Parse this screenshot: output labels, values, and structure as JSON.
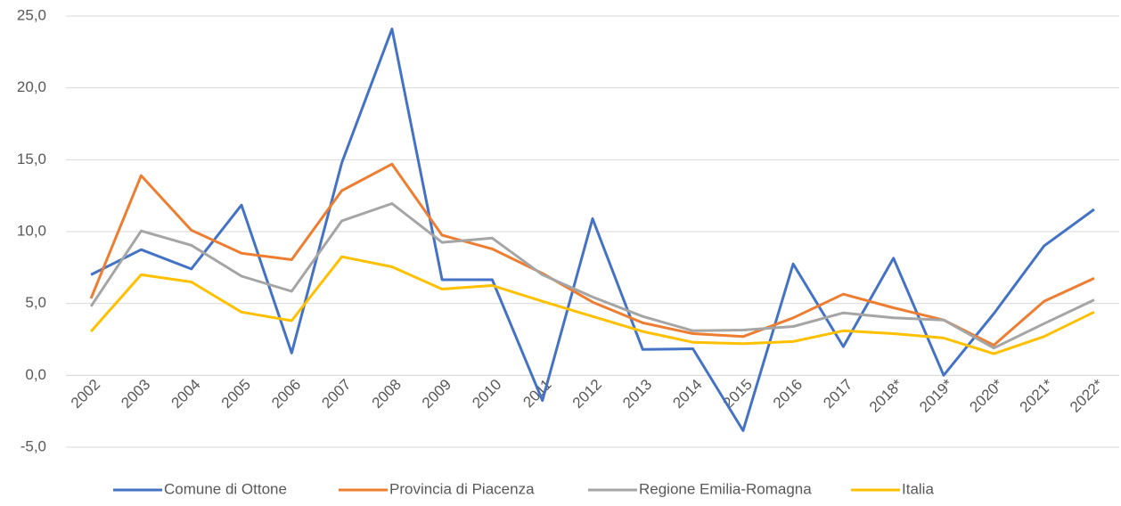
{
  "chart_data": {
    "type": "line",
    "categories": [
      "2002",
      "2003",
      "2004",
      "2005",
      "2006",
      "2007",
      "2008",
      "2009",
      "2010",
      "2011",
      "2012",
      "2013",
      "2014",
      "2015",
      "2016",
      "2017",
      "2018*",
      "2019*",
      "2020*",
      "2021*",
      "2022*"
    ],
    "series": [
      {
        "name": "Comune di Ottone",
        "color": "#4472c4",
        "values": [
          7.0,
          8.75,
          7.4,
          11.85,
          1.55,
          14.8,
          24.1,
          6.65,
          6.65,
          -1.75,
          10.9,
          1.8,
          1.85,
          -3.85,
          7.75,
          2.0,
          8.15,
          0,
          4.3,
          9.0,
          11.55
        ]
      },
      {
        "name": "Provincia di Piacenza",
        "color": "#ed7d31",
        "values": [
          5.35,
          13.9,
          10.1,
          8.5,
          8.05,
          12.85,
          14.7,
          9.75,
          8.8,
          7.1,
          5.1,
          3.65,
          2.9,
          2.7,
          4.0,
          5.65,
          4.7,
          3.85,
          2.1,
          5.15,
          6.75
        ]
      },
      {
        "name": "Regione Emilia-Romagna",
        "color": "#a5a5a5",
        "values": [
          4.8,
          10.05,
          9.05,
          6.9,
          5.85,
          10.75,
          11.95,
          9.25,
          9.55,
          7.0,
          5.45,
          4.1,
          3.1,
          3.15,
          3.4,
          4.35,
          4.0,
          3.85,
          1.9,
          3.6,
          5.25
        ]
      },
      {
        "name": "Italia",
        "color": "#ffc000",
        "values": [
          3.05,
          7.0,
          6.5,
          4.4,
          3.8,
          8.25,
          7.55,
          6.0,
          6.25,
          5.15,
          4.1,
          3.05,
          2.3,
          2.2,
          2.35,
          3.1,
          2.9,
          2.6,
          1.5,
          2.7,
          4.4
        ]
      }
    ],
    "ylim": [
      -5,
      25
    ],
    "yticks": [
      {
        "value": -5,
        "label": "-5,0"
      },
      {
        "value": 0,
        "label": "0,0"
      },
      {
        "value": 5,
        "label": "5,0"
      },
      {
        "value": 10,
        "label": "10,0"
      },
      {
        "value": 15,
        "label": "15,0"
      },
      {
        "value": 20,
        "label": "20,0"
      },
      {
        "value": 25,
        "label": "25,0"
      }
    ],
    "grid": true,
    "legend": "bottom"
  }
}
